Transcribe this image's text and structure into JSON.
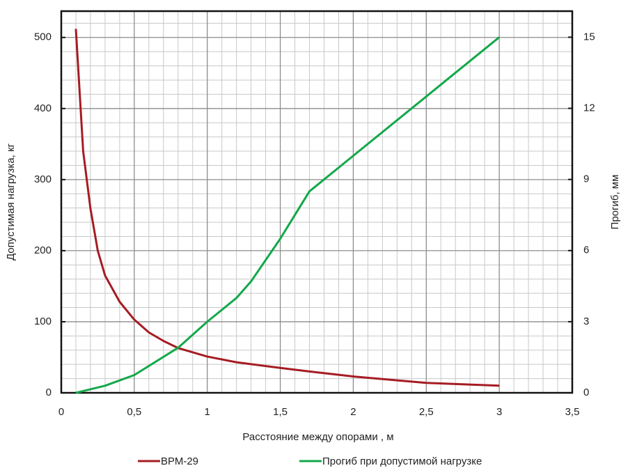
{
  "chart_data": {
    "type": "line",
    "x_label": "Расстояние между опорами , м",
    "y_label": "Допустимая нагрузка, кг",
    "y2_label": "Прогиб, мм",
    "xlim": [
      0,
      3.5
    ],
    "xticks": [
      0,
      {
        "value": 0.5,
        "label": "0,5"
      },
      1,
      {
        "value": 1.5,
        "label": "1,5"
      },
      2,
      {
        "value": 2.5,
        "label": "2,5"
      },
      3,
      {
        "value": 3.5,
        "label": "3,5"
      }
    ],
    "ylim": [
      0,
      537
    ],
    "yticks": [
      0,
      100,
      200,
      300,
      400,
      500
    ],
    "y2lim": [
      0,
      16.1
    ],
    "y2ticks": [
      0,
      3,
      6,
      9,
      12,
      15
    ],
    "grid": true,
    "legend": "bottom",
    "series": [
      {
        "name": "ВРМ-29",
        "color": "#a51c22",
        "x": [
          0.1,
          0.15,
          0.2,
          0.25,
          0.3,
          0.4,
          0.5,
          0.6,
          0.7,
          0.8,
          1,
          1.2,
          1.5,
          1.7,
          2,
          2.5,
          3
        ],
        "values": [
          512,
          340,
          259,
          200,
          165,
          128,
          103,
          85,
          73,
          63,
          51,
          43,
          35,
          30,
          23,
          14,
          10
        ]
      },
      {
        "name": "Прогиб при допустимой нагрузке",
        "color": "#12a84a",
        "axis": "y2",
        "x": [
          0.1,
          0.3,
          0.5,
          0.8,
          1,
          1.1,
          1.2,
          1.3,
          1.4,
          1.5,
          1.6,
          1.7,
          1.8,
          2,
          2.5,
          3
        ],
        "values": [
          0,
          0.3,
          0.75,
          1.9,
          3,
          3.5,
          4.0,
          4.7,
          5.6,
          6.5,
          7.5,
          8.5,
          9.0,
          10.0,
          12.5,
          15
        ]
      }
    ]
  }
}
